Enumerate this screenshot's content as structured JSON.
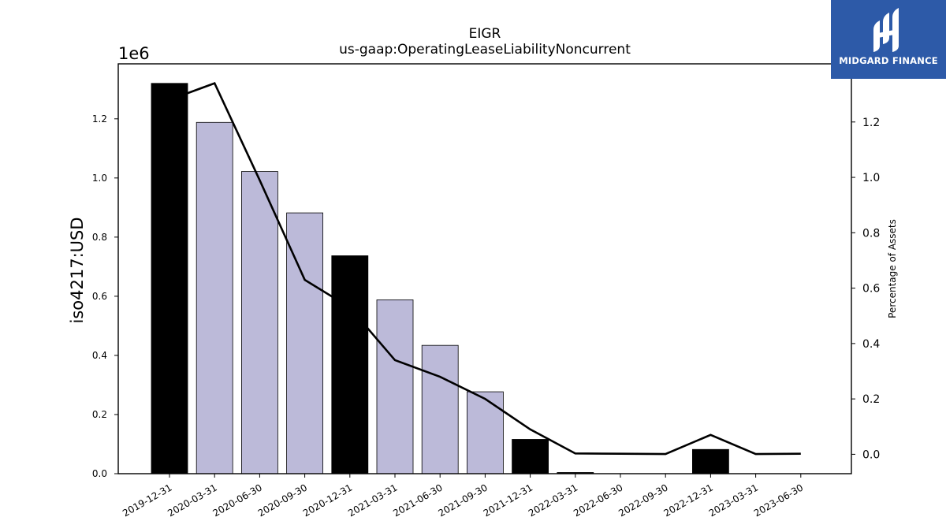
{
  "chart_data": {
    "type": "bar",
    "title": "EIGR",
    "subtitle": "us-gaap:OperatingLeaseLiabilityNoncurrent",
    "ylabel": "iso4217:USD",
    "y_multiplier": "1e6",
    "y2label": "Percentage of Assets",
    "categories": [
      "2019-12-31",
      "2020-03-31",
      "2020-06-30",
      "2020-09-30",
      "2020-12-31",
      "2021-03-31",
      "2021-06-30",
      "2021-09-30",
      "2021-12-31",
      "2022-03-31",
      "2022-06-30",
      "2022-09-30",
      "2022-12-31",
      "2023-03-31",
      "2023-06-30"
    ],
    "values": [
      1320000,
      1188000,
      1022000,
      882000,
      737000,
      588000,
      434000,
      277000,
      116000,
      4000,
      0,
      0,
      82000,
      0,
      0
    ],
    "bar_colors": [
      "#000000",
      "#bcbad9",
      "#bcbad9",
      "#bcbad9",
      "#000000",
      "#bcbad9",
      "#bcbad9",
      "#bcbad9",
      "#000000",
      "#000000",
      "#bcbad9",
      "#bcbad9",
      "#000000",
      "#bcbad9",
      "#bcbad9"
    ],
    "line_values": [
      1.28,
      1.34,
      0.99,
      0.63,
      0.53,
      0.34,
      0.28,
      0.2,
      0.09,
      0.003,
      0.002,
      0.001,
      0.07,
      0.001,
      0.002
    ],
    "ylim": [
      0,
      1386000
    ],
    "y2lim": [
      -0.07,
      1.41
    ],
    "yticks": [
      "0.0",
      "0.2",
      "0.4",
      "0.6",
      "0.8",
      "1.0",
      "1.2"
    ],
    "y2ticks": [
      "0.0",
      "0.2",
      "0.4",
      "0.6",
      "0.8",
      "1.0",
      "1.2"
    ],
    "grid": false
  },
  "logo": {
    "brand": "MIDGARD FINANCE"
  }
}
